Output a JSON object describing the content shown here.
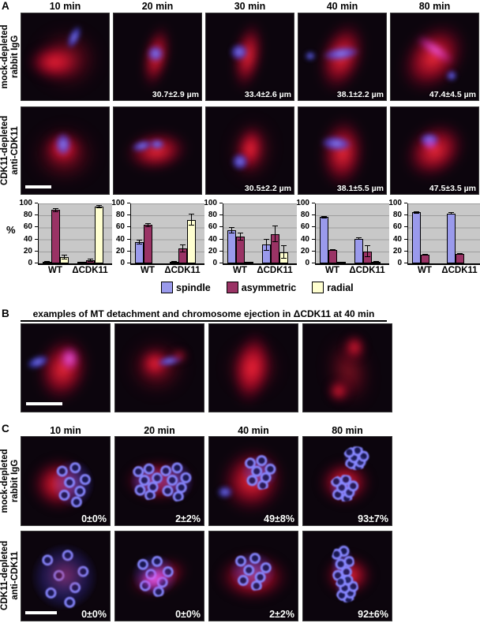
{
  "panelA": {
    "label": "A",
    "time_headers": [
      "10 min",
      "20 min",
      "30 min",
      "40 min",
      "80 min"
    ],
    "row1_label": [
      "mock-depleted",
      "rabbit IgG"
    ],
    "row2_label": [
      "CDK11-depleted",
      "anti-CDK11"
    ],
    "row1_measurements": [
      "",
      "30.7±2.9 µm",
      "33.4±2.6 µm",
      "38.1±2.2 µm",
      "47.4±4.5 µm"
    ],
    "row2_measurements": [
      "",
      "",
      "30.5±2.2 µm",
      "38.1±5.5 µm",
      "47.5±3.5 µm"
    ],
    "pct_axis_label": "%"
  },
  "chart_data": [
    {
      "type": "bar",
      "time": "10 min",
      "categories": [
        "WT",
        "ΔCDK11"
      ],
      "ylim": [
        0,
        100
      ],
      "yticks": [
        0,
        20,
        40,
        60,
        80,
        100
      ],
      "series": [
        {
          "name": "spindle",
          "values": [
            2,
            1
          ],
          "errors": [
            1,
            1
          ]
        },
        {
          "name": "asymmetric",
          "values": [
            89,
            5
          ],
          "errors": [
            3,
            3
          ]
        },
        {
          "name": "radial",
          "values": [
            11,
            95
          ],
          "errors": [
            4,
            3
          ]
        }
      ]
    },
    {
      "type": "bar",
      "time": "20 min",
      "categories": [
        "WT",
        "ΔCDK11"
      ],
      "ylim": [
        0,
        100
      ],
      "yticks": [
        0,
        20,
        40,
        60,
        80,
        100
      ],
      "series": [
        {
          "name": "spindle",
          "values": [
            35,
            2
          ],
          "errors": [
            4,
            1
          ]
        },
        {
          "name": "asymmetric",
          "values": [
            64,
            25
          ],
          "errors": [
            3,
            7
          ]
        },
        {
          "name": "radial",
          "values": [
            0,
            73
          ],
          "errors": [
            0,
            10
          ]
        }
      ]
    },
    {
      "type": "bar",
      "time": "30 min",
      "categories": [
        "WT",
        "ΔCDK11"
      ],
      "ylim": [
        0,
        100
      ],
      "yticks": [
        0,
        20,
        40,
        60,
        80,
        100
      ],
      "series": [
        {
          "name": "spindle",
          "values": [
            55,
            31
          ],
          "errors": [
            5,
            10
          ]
        },
        {
          "name": "asymmetric",
          "values": [
            45,
            49
          ],
          "errors": [
            7,
            14
          ]
        },
        {
          "name": "radial",
          "values": [
            1,
            19
          ],
          "errors": [
            0,
            11
          ]
        }
      ]
    },
    {
      "type": "bar",
      "time": "40 min",
      "categories": [
        "WT",
        "ΔCDK11"
      ],
      "ylim": [
        0,
        100
      ],
      "yticks": [
        0,
        20,
        40,
        60,
        80,
        100
      ],
      "series": [
        {
          "name": "spindle",
          "values": [
            77,
            41
          ],
          "errors": [
            2,
            2
          ]
        },
        {
          "name": "asymmetric",
          "values": [
            22,
            20
          ],
          "errors": [
            1,
            10
          ]
        },
        {
          "name": "radial",
          "values": [
            1,
            2
          ],
          "errors": [
            0,
            2
          ]
        }
      ]
    },
    {
      "type": "bar",
      "time": "80 min",
      "categories": [
        "WT",
        "ΔCDK11"
      ],
      "ylim": [
        0,
        100
      ],
      "yticks": [
        0,
        20,
        40,
        60,
        80,
        100
      ],
      "series": [
        {
          "name": "spindle",
          "values": [
            85,
            83
          ],
          "errors": [
            2,
            2
          ]
        },
        {
          "name": "asymmetric",
          "values": [
            14,
            16
          ],
          "errors": [
            1,
            1
          ]
        },
        {
          "name": "radial",
          "values": [
            0,
            0
          ],
          "errors": [
            0,
            0
          ]
        }
      ]
    }
  ],
  "legend": {
    "items": [
      {
        "label": "spindle",
        "color": "#9a9aec"
      },
      {
        "label": "asymmetric",
        "color": "#9a3365"
      },
      {
        "label": "radial",
        "color": "#ffffd0"
      }
    ]
  },
  "panelB": {
    "label": "B",
    "title": "examples of MT detachment and chromosome ejection in ΔCDK11 at 40 min"
  },
  "panelC": {
    "label": "C",
    "time_headers": [
      "10 min",
      "20 min",
      "40 min",
      "80 min"
    ],
    "row1_label": [
      "mock-depleted",
      "rabbit IgG"
    ],
    "row2_label": [
      "CDK11-depleted",
      "anti-CDK11"
    ],
    "row1_values": [
      "0±0%",
      "2±2%",
      "49±8%",
      "93±7%"
    ],
    "row2_values": [
      "0±0%",
      "0±0%",
      "2±2%",
      "92±6%"
    ]
  }
}
